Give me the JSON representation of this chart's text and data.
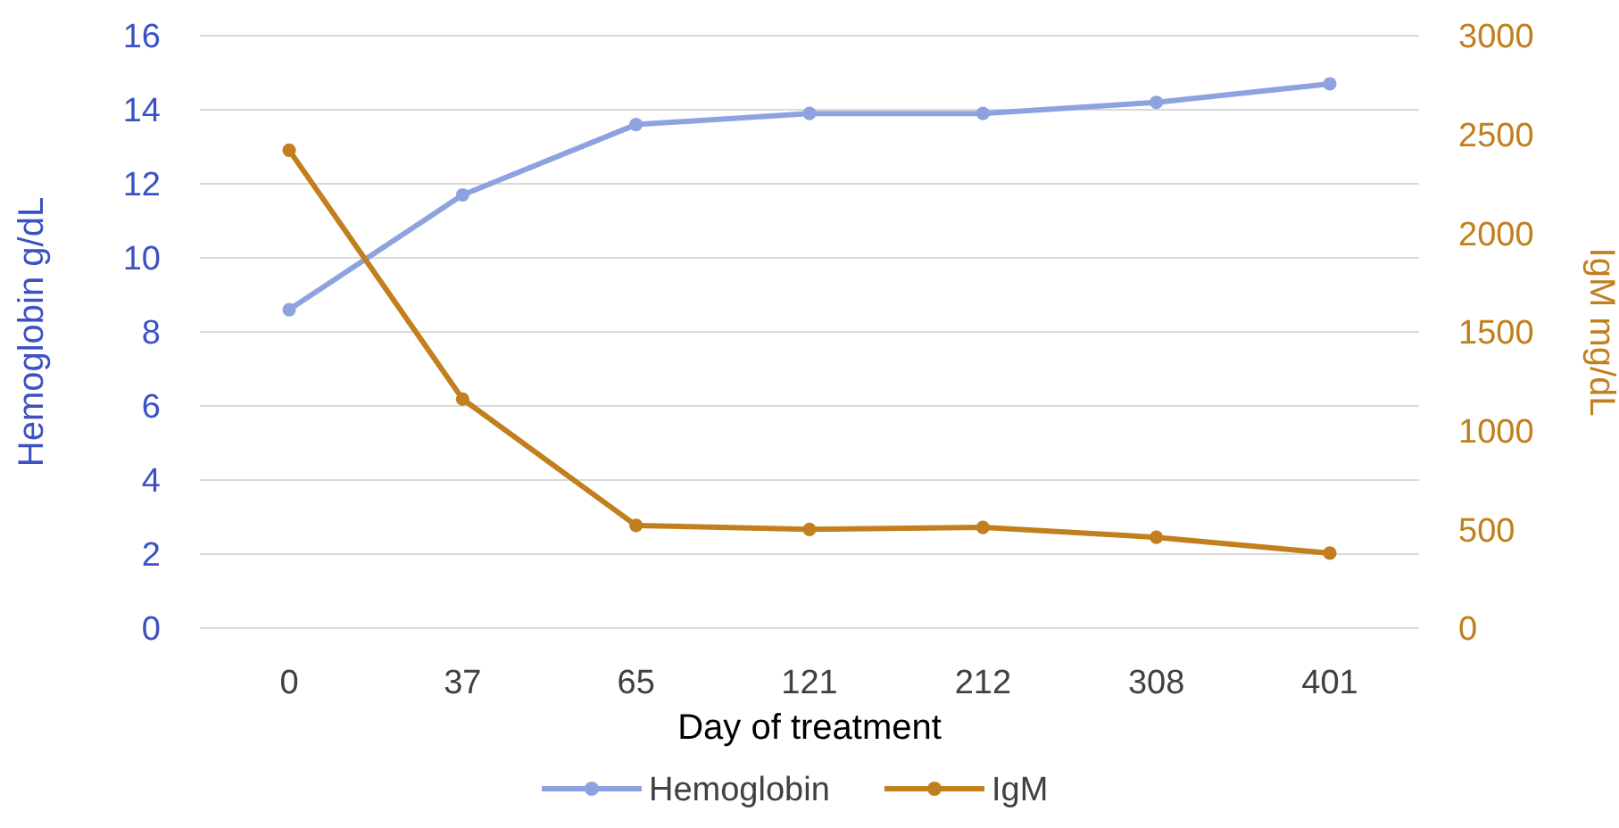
{
  "chart_data": {
    "type": "line",
    "xlabel": "Day of treatment",
    "ylabel": "Hemoglobin g/dL",
    "y2label": "IgM mg/dL",
    "categories": [
      "0",
      "37",
      "65",
      "121",
      "212",
      "308",
      "401"
    ],
    "series": [
      {
        "name": "Hemoglobin",
        "color": "#8ea2e0",
        "values": [
          8.6,
          11.7,
          13.6,
          13.9,
          13.9,
          14.2,
          14.7
        ]
      },
      {
        "name": "IgM",
        "color": "#c17f1d",
        "axis": "y2",
        "values": [
          2420,
          1160,
          520,
          500,
          510,
          460,
          380
        ]
      }
    ],
    "ylim": [
      0,
      16
    ],
    "yticks": [
      0,
      2,
      4,
      6,
      8,
      10,
      12,
      14,
      16
    ],
    "y2lim": [
      0,
      3000
    ],
    "y2ticks": [
      0,
      500,
      1000,
      1500,
      2000,
      2500,
      3000
    ],
    "grid": "y",
    "legend": "bottom",
    "marker": "circle",
    "line_style": "solid"
  }
}
